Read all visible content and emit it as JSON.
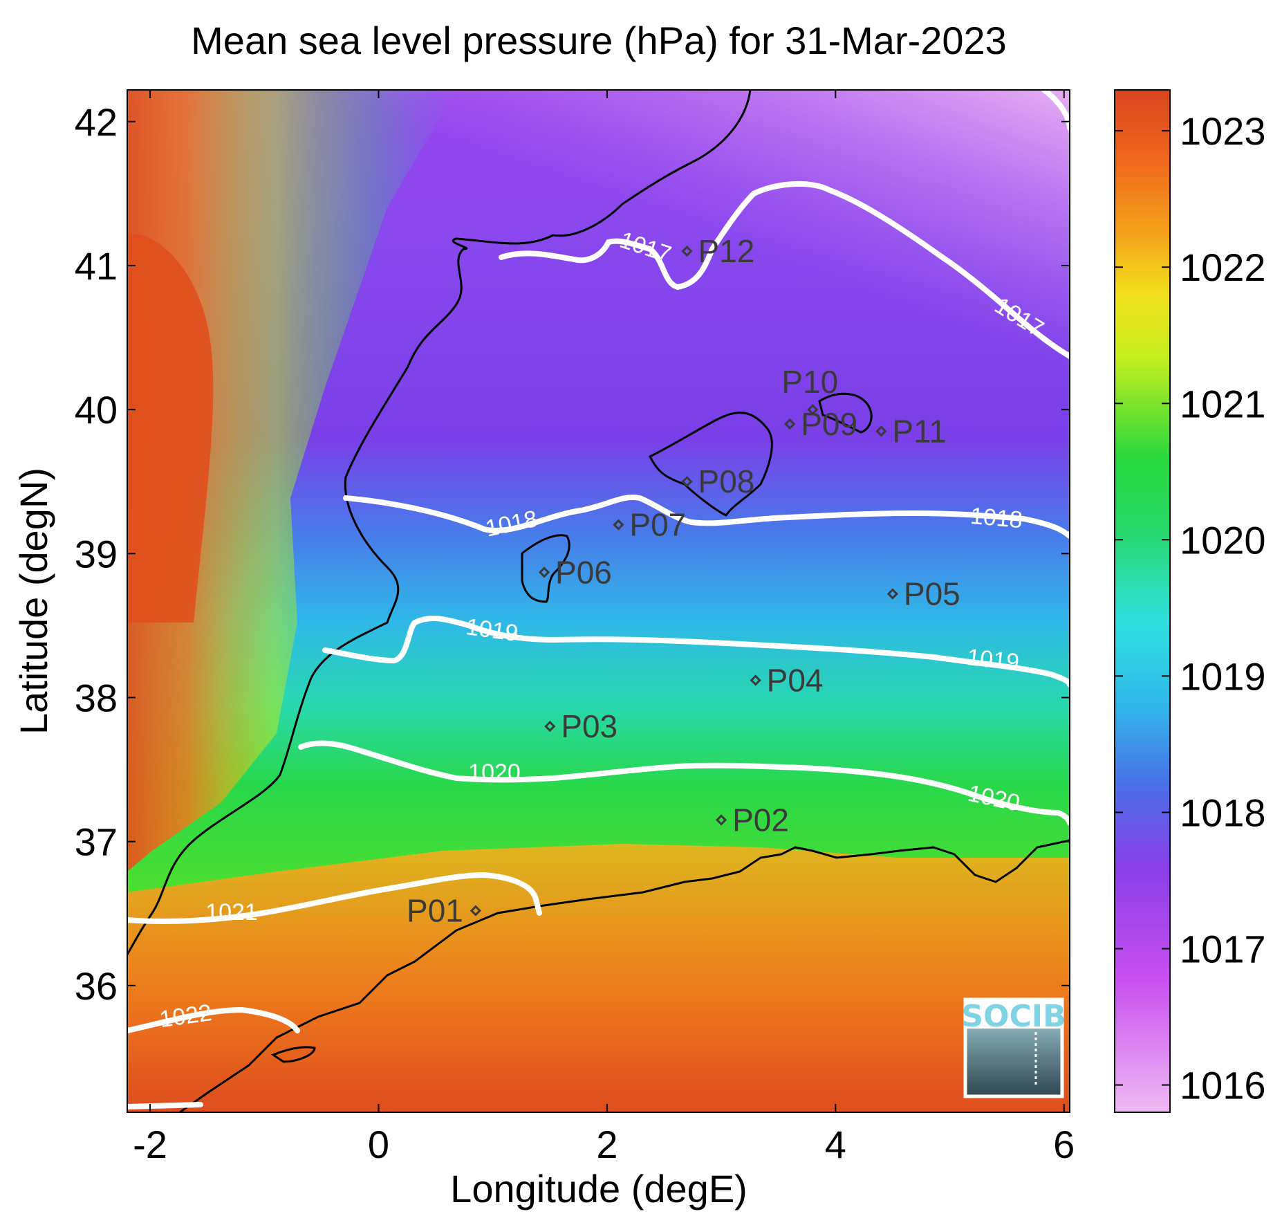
{
  "map": {
    "title": "Mean sea level pressure (hPa) for 31-Mar-2023",
    "xlabel": "Longitude (degE)",
    "ylabel": "Latitude (degN)",
    "xlim": [
      -2.2,
      6.05
    ],
    "ylim": [
      35.12,
      42.22
    ],
    "xticks": [
      -2,
      0,
      2,
      4,
      6
    ],
    "yticks": [
      36,
      37,
      38,
      39,
      40,
      41,
      42
    ],
    "colorbar": {
      "range": [
        1015.8,
        1023.3
      ],
      "ticks": [
        1016,
        1017,
        1018,
        1019,
        1020,
        1021,
        1022,
        1023
      ],
      "colors": [
        "#efbaf3",
        "#c84ff0",
        "#7a3fe8",
        "#3f8cea",
        "#2ee0e0",
        "#28d83c",
        "#c8ef1e",
        "#f4a21a",
        "#d8451e"
      ]
    },
    "contours": [
      {
        "level": 1017,
        "labels": [
          "1017",
          "1017"
        ]
      },
      {
        "level": 1018,
        "labels": [
          "1018",
          "1018"
        ]
      },
      {
        "level": 1019,
        "labels": [
          "1019",
          "1019"
        ]
      },
      {
        "level": 1020,
        "labels": [
          "1020",
          "1020"
        ]
      },
      {
        "level": 1021,
        "labels": [
          "1021"
        ]
      },
      {
        "level": 1022,
        "labels": [
          "1022"
        ]
      }
    ],
    "stations": [
      {
        "id": "P01",
        "lon": 0.85,
        "lat": 36.52
      },
      {
        "id": "P02",
        "lon": 3.0,
        "lat": 37.15
      },
      {
        "id": "P03",
        "lon": 1.5,
        "lat": 37.8
      },
      {
        "id": "P04",
        "lon": 3.3,
        "lat": 38.12
      },
      {
        "id": "P05",
        "lon": 4.5,
        "lat": 38.72
      },
      {
        "id": "P06",
        "lon": 1.45,
        "lat": 38.87
      },
      {
        "id": "P07",
        "lon": 2.1,
        "lat": 39.2
      },
      {
        "id": "P08",
        "lon": 2.7,
        "lat": 39.5
      },
      {
        "id": "P09",
        "lon": 3.6,
        "lat": 39.9
      },
      {
        "id": "P10",
        "lon": 3.8,
        "lat": 40.0
      },
      {
        "id": "P11",
        "lon": 4.4,
        "lat": 39.85
      },
      {
        "id": "P12",
        "lon": 2.7,
        "lat": 41.1
      }
    ],
    "logo": "SOCIB"
  }
}
